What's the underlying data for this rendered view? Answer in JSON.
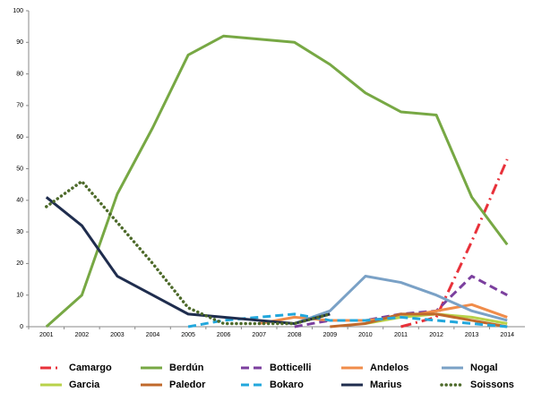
{
  "chart_data": {
    "type": "line",
    "categories": [
      "2001",
      "2002",
      "2003",
      "2004",
      "2005",
      "2006",
      "2007",
      "2008",
      "2009",
      "2010",
      "2011",
      "2012",
      "2013",
      "2014"
    ],
    "ylim": [
      0,
      100
    ],
    "yticks": [
      0,
      10,
      20,
      30,
      40,
      50,
      60,
      70,
      80,
      90,
      100
    ],
    "legend": "bottom",
    "series": [
      {
        "name": "Camargo",
        "color": "#e8313a",
        "style": "dash-dot",
        "values": [
          null,
          null,
          null,
          null,
          null,
          null,
          null,
          null,
          null,
          null,
          0,
          3,
          27,
          53
        ]
      },
      {
        "name": "Berdún",
        "color": "#77a844",
        "style": "solid",
        "values": [
          0,
          10,
          42,
          63,
          86,
          92,
          91,
          90,
          83,
          74,
          68,
          67,
          41,
          26
        ]
      },
      {
        "name": "Botticelli",
        "color": "#7b3f9e",
        "style": "dashed",
        "values": [
          null,
          null,
          null,
          null,
          null,
          null,
          null,
          0,
          2,
          2,
          4,
          5,
          16,
          10
        ]
      },
      {
        "name": "Andelos",
        "color": "#f08c4a",
        "style": "solid",
        "values": [
          null,
          null,
          null,
          null,
          null,
          null,
          1,
          3,
          2,
          2,
          3,
          5,
          7,
          3
        ]
      },
      {
        "name": "Nogal",
        "color": "#7aa1c6",
        "style": "solid",
        "values": [
          null,
          null,
          null,
          null,
          null,
          null,
          null,
          1,
          5,
          16,
          14,
          10,
          5,
          2
        ]
      },
      {
        "name": "Garcia",
        "color": "#b8d24a",
        "style": "solid",
        "values": [
          null,
          null,
          null,
          null,
          null,
          null,
          null,
          null,
          null,
          1,
          3,
          4,
          3,
          1
        ]
      },
      {
        "name": "Paledor",
        "color": "#c0692b",
        "style": "solid",
        "values": [
          null,
          null,
          null,
          null,
          null,
          null,
          null,
          null,
          0,
          1,
          4,
          4,
          2,
          0
        ]
      },
      {
        "name": "Bokaro",
        "color": "#22a7dc",
        "style": "dashed",
        "values": [
          null,
          null,
          null,
          null,
          0,
          2,
          3,
          4,
          2,
          2,
          3,
          2,
          1,
          0
        ]
      },
      {
        "name": "Marius",
        "color": "#1f2d4e",
        "style": "solid",
        "values": [
          41,
          32,
          16,
          10,
          4,
          3,
          2,
          1,
          4,
          null,
          null,
          null,
          null,
          null
        ]
      },
      {
        "name": "Soissons",
        "color": "#4d6a2a",
        "style": "dotted",
        "values": [
          38,
          46,
          33,
          20,
          6,
          1,
          1,
          1,
          4,
          null,
          null,
          null,
          null,
          null
        ]
      }
    ]
  }
}
